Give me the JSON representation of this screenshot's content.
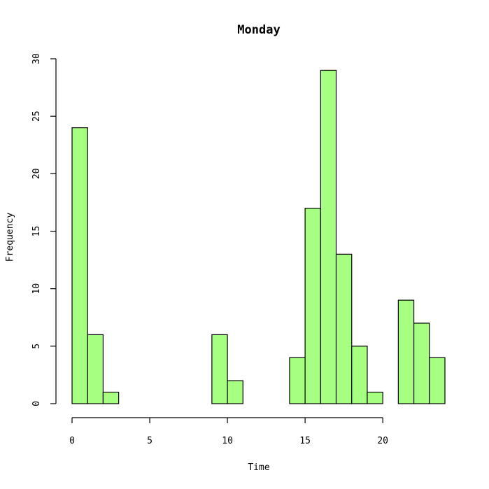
{
  "chart_data": {
    "type": "bar",
    "title": "Monday",
    "xlabel": "Time",
    "ylabel": "Frequency",
    "bin_width": 1,
    "bins": [
      {
        "start": 0,
        "value": 24
      },
      {
        "start": 1,
        "value": 6
      },
      {
        "start": 2,
        "value": 1
      },
      {
        "start": 3,
        "value": 0
      },
      {
        "start": 4,
        "value": 0
      },
      {
        "start": 5,
        "value": 0
      },
      {
        "start": 6,
        "value": 0
      },
      {
        "start": 7,
        "value": 0
      },
      {
        "start": 8,
        "value": 0
      },
      {
        "start": 9,
        "value": 6
      },
      {
        "start": 10,
        "value": 2
      },
      {
        "start": 11,
        "value": 0
      },
      {
        "start": 12,
        "value": 0
      },
      {
        "start": 13,
        "value": 0
      },
      {
        "start": 14,
        "value": 4
      },
      {
        "start": 15,
        "value": 17
      },
      {
        "start": 16,
        "value": 29
      },
      {
        "start": 17,
        "value": 13
      },
      {
        "start": 18,
        "value": 5
      },
      {
        "start": 19,
        "value": 1
      },
      {
        "start": 20,
        "value": 0
      },
      {
        "start": 21,
        "value": 9
      },
      {
        "start": 22,
        "value": 7
      },
      {
        "start": 23,
        "value": 4
      }
    ],
    "xlim": [
      0,
      24
    ],
    "ylim": [
      0,
      30
    ],
    "xticks": [
      0,
      5,
      10,
      15,
      20
    ],
    "yticks": [
      0,
      5,
      10,
      15,
      20,
      25,
      30
    ],
    "bar_color": "#a6ff80",
    "grid": false
  }
}
